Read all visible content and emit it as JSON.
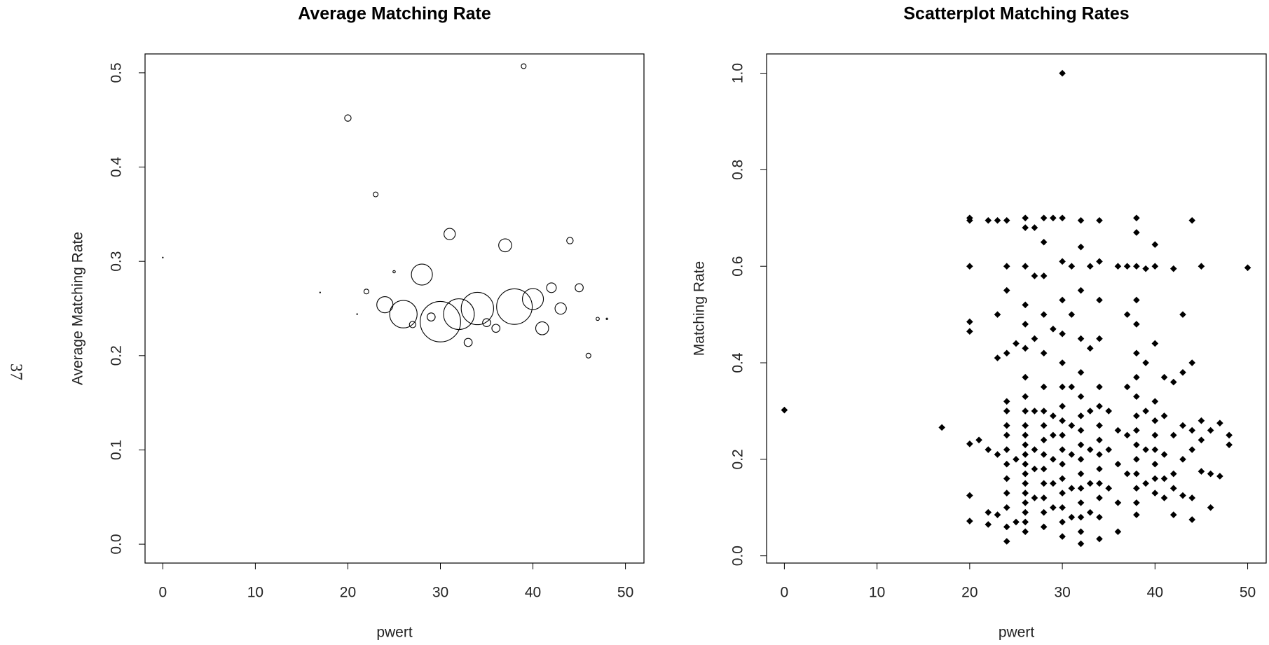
{
  "page_label": "37",
  "chart_data": [
    {
      "type": "bubble",
      "title": "Average Matching Rate",
      "xlabel": "pwert",
      "ylabel": "Average Matching Rate",
      "x": [
        0,
        17,
        20,
        21,
        22,
        23,
        24,
        25,
        26,
        27,
        28,
        29,
        30,
        31,
        32,
        33,
        34,
        35,
        36,
        37,
        38,
        39,
        40,
        41,
        42,
        43,
        44,
        45,
        46,
        47,
        48
      ],
      "values": [
        0.304,
        0.267,
        0.452,
        0.244,
        0.268,
        0.371,
        0.254,
        0.289,
        0.244,
        0.233,
        0.286,
        0.241,
        0.236,
        0.329,
        0.244,
        0.214,
        0.25,
        0.235,
        0.229,
        0.317,
        0.252,
        0.507,
        0.26,
        0.229,
        0.272,
        0.25,
        0.322,
        0.272,
        0.2,
        0.239,
        0.239
      ],
      "sizes": [
        0.5,
        0.5,
        4,
        0.5,
        3,
        3,
        10,
        1.5,
        17,
        4,
        13,
        5,
        25,
        7,
        19,
        5,
        20,
        5,
        5,
        8,
        22,
        3,
        13,
        8,
        6,
        7,
        4,
        5,
        3,
        2,
        1
      ],
      "color": "#000000",
      "xlim": [
        -1.92,
        52
      ],
      "ylim": [
        -0.02,
        0.52
      ],
      "xticks": [
        0,
        10,
        20,
        30,
        40,
        50
      ],
      "yticks": [
        {
          "value": 0,
          "label": "0.0"
        },
        0.1,
        0.2,
        0.3,
        0.4,
        0.5
      ]
    },
    {
      "type": "scatter",
      "title": "Scatterplot Matching Rates",
      "xlabel": "pwert",
      "ylabel": "Matching Rate",
      "x": [
        0,
        17,
        20,
        20,
        20,
        20,
        20,
        20,
        20,
        20,
        21,
        22,
        22,
        22,
        22,
        23,
        23,
        23,
        23,
        23,
        24,
        24,
        24,
        24,
        24,
        24,
        24,
        24,
        24,
        24,
        24,
        24,
        24,
        24,
        24,
        25,
        25,
        25,
        26,
        26,
        26,
        26,
        26,
        26,
        26,
        26,
        26,
        26,
        26,
        26,
        26,
        26,
        26,
        26,
        26,
        26,
        26,
        26,
        26,
        27,
        27,
        27,
        27,
        27,
        27,
        27,
        28,
        28,
        28,
        28,
        28,
        28,
        28,
        28,
        28,
        28,
        28,
        28,
        28,
        28,
        28,
        29,
        29,
        29,
        29,
        29,
        29,
        29,
        30,
        30,
        30,
        30,
        30,
        30,
        30,
        30,
        30,
        30,
        30,
        30,
        30,
        30,
        30,
        30,
        30,
        31,
        31,
        31,
        31,
        31,
        31,
        31,
        32,
        32,
        32,
        32,
        32,
        32,
        32,
        32,
        32,
        32,
        32,
        32,
        32,
        32,
        32,
        32,
        33,
        33,
        33,
        33,
        33,
        33,
        34,
        34,
        34,
        34,
        34,
        34,
        34,
        34,
        34,
        34,
        34,
        34,
        34,
        34,
        35,
        35,
        35,
        36,
        36,
        36,
        36,
        36,
        37,
        37,
        37,
        37,
        37,
        38,
        38,
        38,
        38,
        38,
        38,
        38,
        38,
        38,
        38,
        38,
        38,
        38,
        38,
        38,
        38,
        39,
        39,
        39,
        39,
        39,
        40,
        40,
        40,
        40,
        40,
        40,
        40,
        40,
        40,
        40,
        41,
        41,
        41,
        41,
        41,
        42,
        42,
        42,
        42,
        42,
        42,
        43,
        43,
        43,
        43,
        43,
        44,
        44,
        44,
        44,
        44,
        44,
        45,
        45,
        45,
        45,
        46,
        46,
        46,
        47,
        47,
        48,
        48,
        50
      ],
      "values": [
        0.302,
        0.266,
        0.7,
        0.695,
        0.6,
        0.485,
        0.465,
        0.232,
        0.125,
        0.072,
        0.24,
        0.695,
        0.22,
        0.09,
        0.065,
        0.695,
        0.5,
        0.41,
        0.21,
        0.085,
        0.695,
        0.6,
        0.55,
        0.42,
        0.32,
        0.3,
        0.27,
        0.25,
        0.22,
        0.19,
        0.16,
        0.13,
        0.1,
        0.06,
        0.03,
        0.44,
        0.2,
        0.07,
        0.7,
        0.68,
        0.6,
        0.52,
        0.48,
        0.43,
        0.37,
        0.33,
        0.3,
        0.27,
        0.25,
        0.23,
        0.21,
        0.19,
        0.17,
        0.15,
        0.13,
        0.11,
        0.09,
        0.07,
        0.05,
        0.68,
        0.58,
        0.45,
        0.3,
        0.22,
        0.18,
        0.12,
        0.7,
        0.65,
        0.58,
        0.5,
        0.42,
        0.35,
        0.3,
        0.27,
        0.24,
        0.21,
        0.18,
        0.15,
        0.12,
        0.09,
        0.06,
        0.7,
        0.47,
        0.29,
        0.25,
        0.2,
        0.15,
        0.1,
        1.0,
        0.7,
        0.61,
        0.53,
        0.46,
        0.4,
        0.35,
        0.31,
        0.28,
        0.25,
        0.22,
        0.19,
        0.16,
        0.13,
        0.1,
        0.07,
        0.04,
        0.6,
        0.5,
        0.35,
        0.27,
        0.21,
        0.14,
        0.08,
        0.695,
        0.64,
        0.55,
        0.45,
        0.38,
        0.33,
        0.29,
        0.26,
        0.23,
        0.2,
        0.17,
        0.14,
        0.11,
        0.08,
        0.05,
        0.025,
        0.6,
        0.43,
        0.3,
        0.22,
        0.15,
        0.09,
        0.695,
        0.61,
        0.53,
        0.45,
        0.35,
        0.31,
        0.27,
        0.24,
        0.21,
        0.18,
        0.15,
        0.12,
        0.08,
        0.035,
        0.3,
        0.22,
        0.14,
        0.6,
        0.26,
        0.19,
        0.11,
        0.05,
        0.6,
        0.5,
        0.35,
        0.25,
        0.17,
        0.7,
        0.67,
        0.6,
        0.53,
        0.48,
        0.42,
        0.37,
        0.33,
        0.29,
        0.26,
        0.23,
        0.2,
        0.17,
        0.14,
        0.11,
        0.085,
        0.595,
        0.4,
        0.3,
        0.22,
        0.15,
        0.645,
        0.6,
        0.44,
        0.32,
        0.28,
        0.25,
        0.22,
        0.19,
        0.16,
        0.13,
        0.37,
        0.29,
        0.21,
        0.16,
        0.12,
        0.595,
        0.36,
        0.25,
        0.17,
        0.14,
        0.085,
        0.5,
        0.38,
        0.27,
        0.2,
        0.125,
        0.695,
        0.4,
        0.26,
        0.22,
        0.12,
        0.075,
        0.6,
        0.28,
        0.24,
        0.175,
        0.26,
        0.17,
        0.1,
        0.275,
        0.165,
        0.25,
        0.23,
        0.597
      ],
      "color": "#000000",
      "xlim": [
        -1.92,
        52
      ],
      "ylim": [
        -0.015,
        1.04
      ],
      "xticks": [
        0,
        10,
        20,
        30,
        40,
        50
      ],
      "yticks": [
        {
          "value": 0,
          "label": "0.0"
        },
        0.2,
        0.4,
        0.6,
        0.8,
        {
          "value": 1,
          "label": "1.0"
        }
      ]
    }
  ]
}
